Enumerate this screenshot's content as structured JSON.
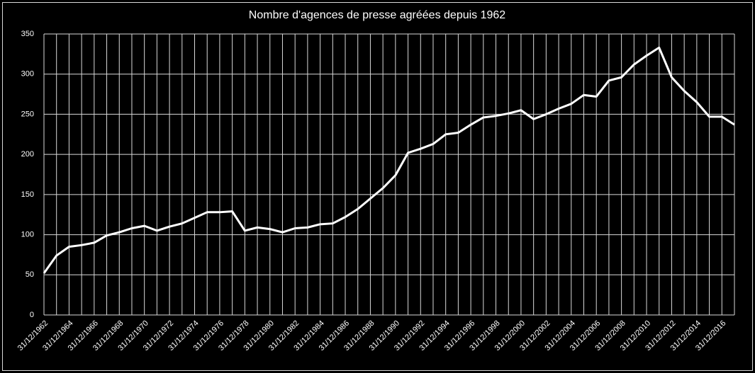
{
  "chart_data": {
    "type": "line",
    "title": "Nombre d'agences de presse agréées depuis 1962",
    "categories": [
      "31/12/1962",
      null,
      "31/12/1964",
      null,
      "31/12/1966",
      null,
      "31/12/1968",
      null,
      "31/12/1970",
      null,
      "31/12/1972",
      null,
      "31/12/1974",
      null,
      "31/12/1976",
      null,
      "31/12/1978",
      null,
      "31/12/1980",
      null,
      "31/12/1982",
      null,
      "31/12/1984",
      null,
      "31/12/1986",
      null,
      "31/12/1988",
      null,
      "31/12/1990",
      null,
      "31/12/1992",
      null,
      "31/12/1994",
      null,
      "31/12/1996",
      null,
      "31/12/1998",
      null,
      "31/12/2000",
      null,
      "31/12/2002",
      null,
      "31/12/2004",
      null,
      "31/12/2006",
      null,
      "31/12/2008",
      null,
      "31/12/2010",
      null,
      "31/12/2012",
      null,
      "31/12/2014",
      null,
      "31/12/2016",
      null
    ],
    "values": [
      52,
      74,
      85,
      87,
      90,
      99,
      103,
      108,
      111,
      105,
      110,
      114,
      121,
      128,
      128,
      129,
      105,
      109,
      107,
      103,
      108,
      109,
      113,
      114,
      122,
      132,
      145,
      158,
      174,
      202,
      207,
      213,
      225,
      227,
      237,
      246,
      248,
      251,
      255,
      244,
      250,
      257,
      263,
      274,
      272,
      292,
      296,
      312,
      323,
      333,
      296,
      279,
      265,
      247,
      247,
      237
    ],
    "color": "#ffffff",
    "ylim": [
      0,
      350
    ],
    "yticks": [
      0,
      50,
      100,
      150,
      200,
      250,
      300,
      350
    ],
    "grid": true
  }
}
